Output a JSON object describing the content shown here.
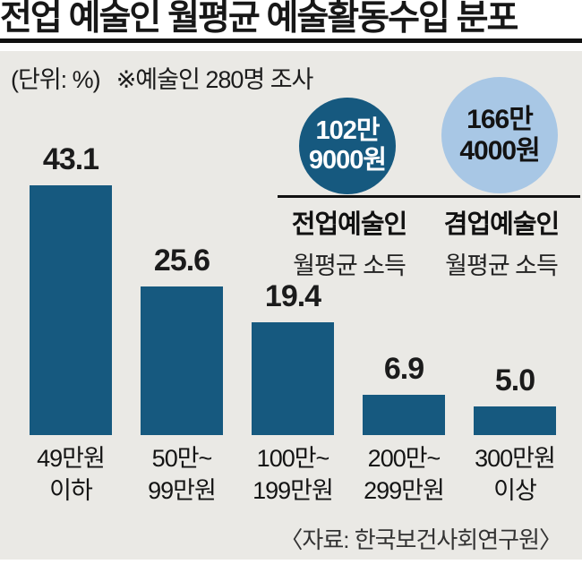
{
  "title": "전업 예술인 월평균 예술활동수입 분포",
  "subtitle": {
    "unit": "(단위: %)",
    "note": "※예술인 280명 조사"
  },
  "income_circles": {
    "full_time": {
      "line1": "102만",
      "line2": "9000원",
      "label_bold": "전업예술인",
      "label_sub": "월평균 소득",
      "color": "#16597f",
      "text_color": "#ffffff"
    },
    "side_job": {
      "line1": "166만",
      "line2": "4000원",
      "label_bold": "겸업예술인",
      "label_sub": "월평균 소득",
      "color": "#a8c7e5",
      "text_color": "#131313"
    }
  },
  "source": "〈자료: 한국보건사회연구원〉",
  "chart_data": {
    "type": "bar",
    "title": "전업 예술인 월평균 예술활동수입 분포",
    "unit": "%",
    "categories": [
      "49만원 이하",
      "50만~99만원",
      "100만~199만원",
      "200만~299만원",
      "300만원 이상"
    ],
    "category_lines": [
      [
        "49만원",
        "이하"
      ],
      [
        "50만~",
        "99만원"
      ],
      [
        "100만~",
        "199만원"
      ],
      [
        "200만~",
        "299만원"
      ],
      [
        "300만원",
        "이상"
      ]
    ],
    "values": [
      43.1,
      25.6,
      19.4,
      6.9,
      5.0
    ],
    "display_values": [
      "43.1",
      "25.6",
      "19.4",
      "6.9",
      "5.0"
    ],
    "bar_color": "#16597f",
    "xlabel": "",
    "ylabel": "",
    "ylim": [
      0,
      45
    ],
    "grid": false,
    "legend": false
  }
}
